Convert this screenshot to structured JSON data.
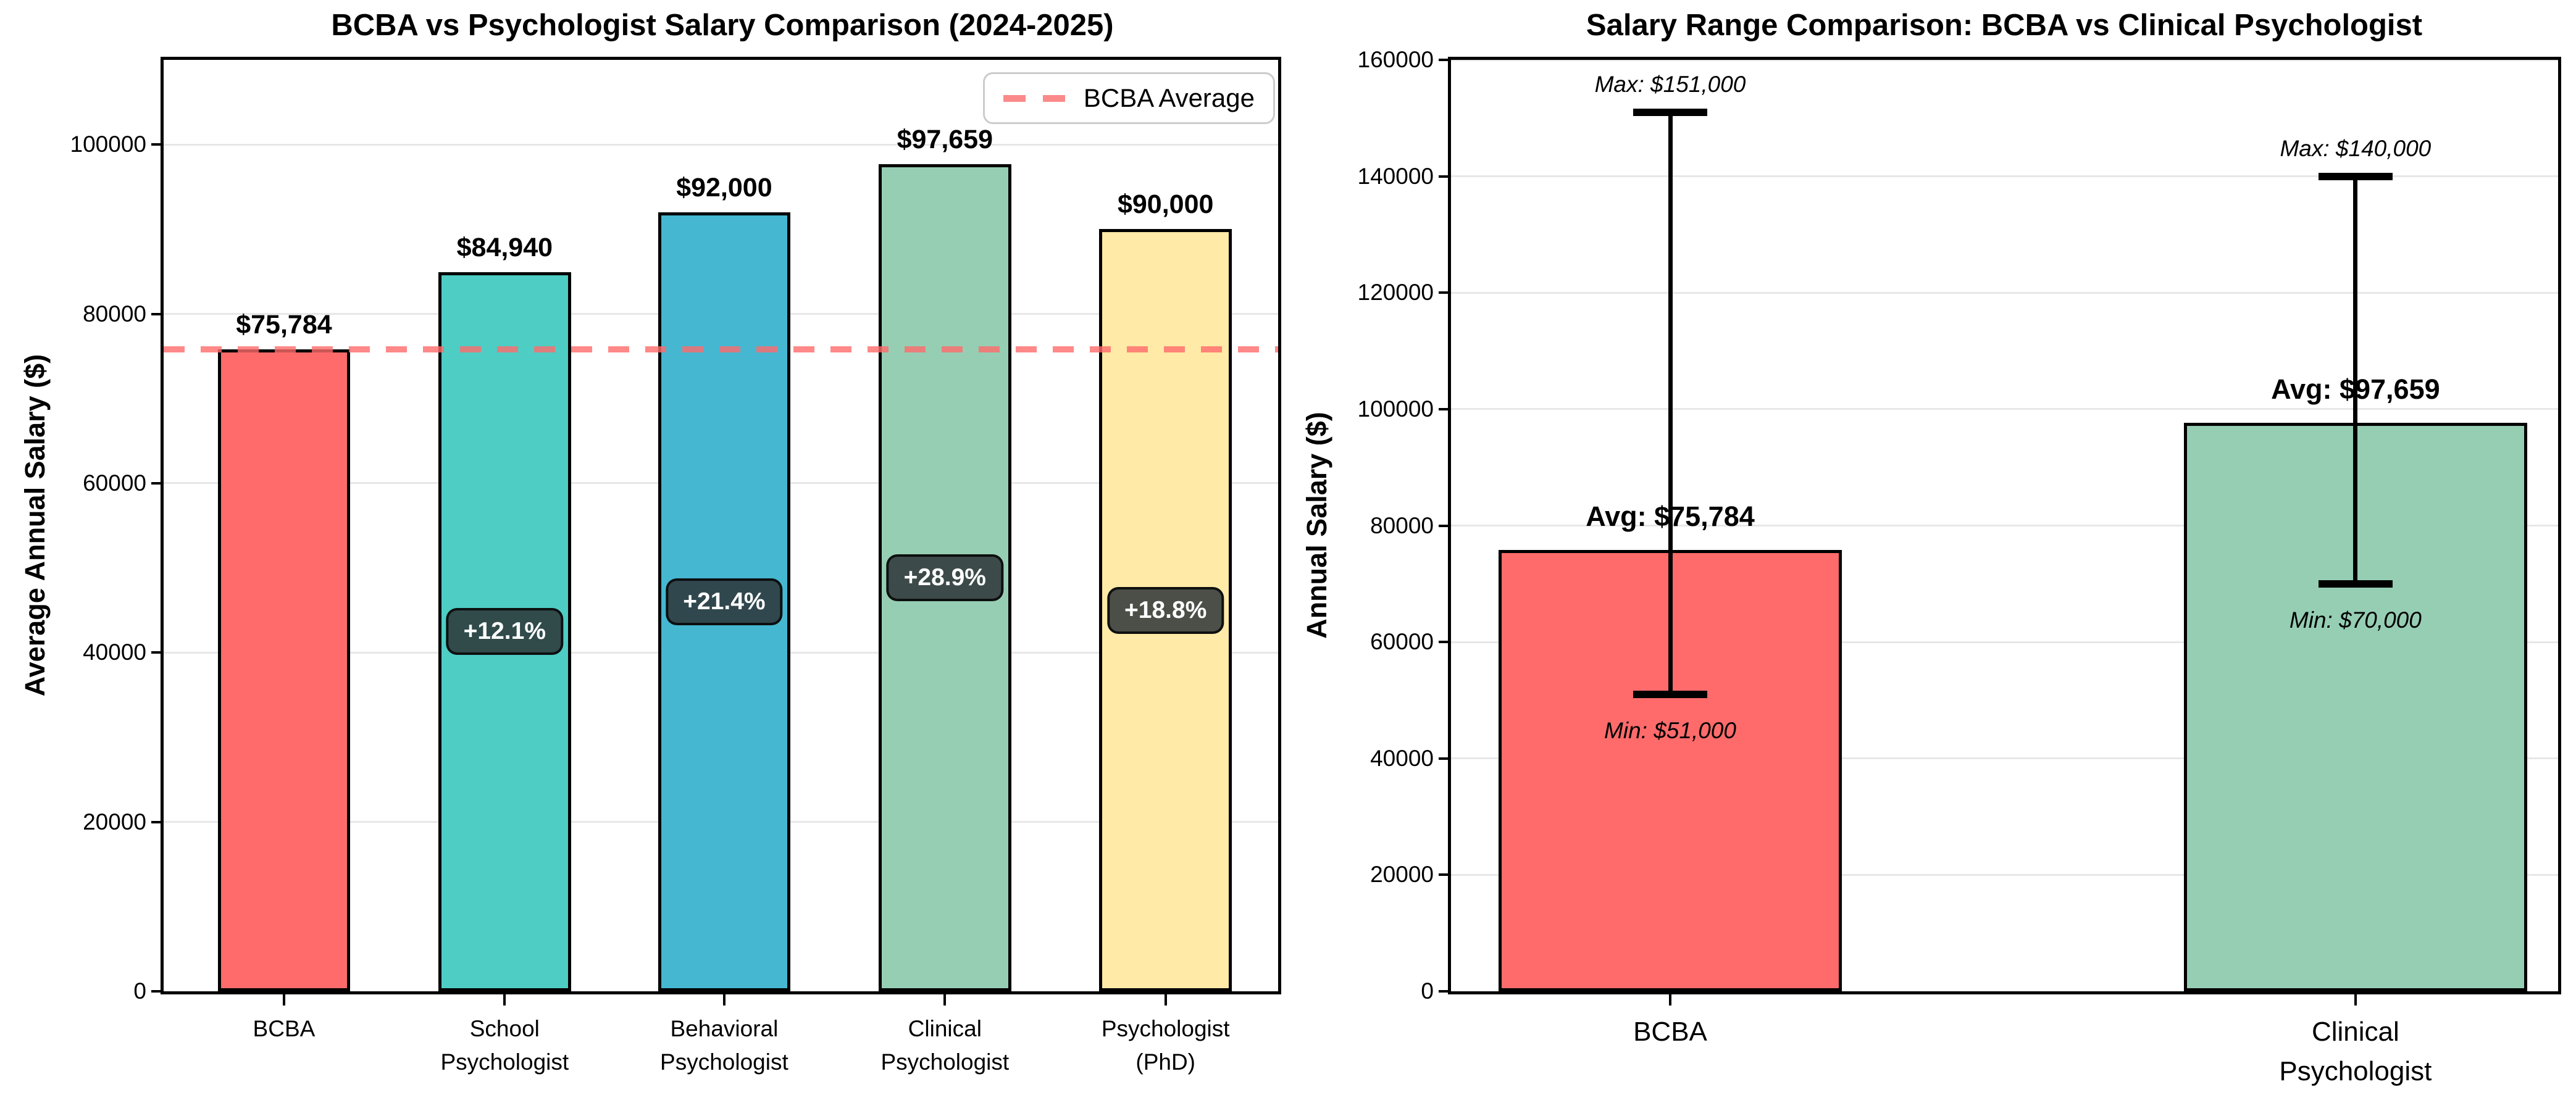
{
  "figure": {
    "background": "#ffffff"
  },
  "chart_data": [
    {
      "type": "bar",
      "title": "BCBA vs Psychologist Salary Comparison (2024-2025)",
      "ylabel": "Average Annual Salary ($)",
      "ylim": [
        0,
        110000
      ],
      "yticks": [
        0,
        20000,
        40000,
        60000,
        80000,
        100000
      ],
      "grid": true,
      "legend_position": "upper right",
      "categories": [
        "BCBA",
        "School\nPsychologist",
        "Behavioral\nPsychologist",
        "Clinical\nPsychologist",
        "Psychologist\n(PhD)"
      ],
      "values": [
        75784,
        84940,
        92000,
        97659,
        90000
      ],
      "value_labels": [
        "$75,784",
        "$84,940",
        "$92,000",
        "$97,659",
        "$90,000"
      ],
      "pct_labels": [
        null,
        "+12.1%",
        "+21.4%",
        "+28.9%",
        "+18.8%"
      ],
      "bar_colors": [
        "#FF6B6B",
        "#4ECDC4",
        "#45B7D1",
        "#96CEB4",
        "#FFEAA7"
      ],
      "bar_edge_color": "#000000",
      "avg_line": {
        "value": 75784,
        "color": "#FF6B6B",
        "style": "dashed"
      },
      "legend": {
        "entries": [
          {
            "label": "BCBA Average",
            "style": "dashed",
            "color": "#FF6B6B"
          }
        ]
      },
      "badge_bg": "#2d3436",
      "badge_text_color": "#ffffff"
    },
    {
      "type": "bar",
      "title": "Salary Range Comparison: BCBA vs Clinical Psychologist",
      "ylabel": "Annual Salary ($)",
      "ylim": [
        0,
        160000
      ],
      "yticks": [
        0,
        20000,
        40000,
        60000,
        80000,
        100000,
        120000,
        140000,
        160000
      ],
      "grid": true,
      "categories": [
        "BCBA",
        "Clinical\nPsychologist"
      ],
      "values": [
        75784,
        97659
      ],
      "bar_colors": [
        "#FF6B6B",
        "#96CEB4"
      ],
      "bar_edge_color": "#000000",
      "error_bars": [
        {
          "min": 51000,
          "max": 151000
        },
        {
          "min": 70000,
          "max": 140000
        }
      ],
      "annotations": [
        {
          "max": "Max: $151,000",
          "avg": "Avg: $75,784",
          "min": "Min: $51,000"
        },
        {
          "max": "Max: $140,000",
          "avg": "Avg: $97,659",
          "min": "Min: $70,000"
        }
      ]
    }
  ]
}
